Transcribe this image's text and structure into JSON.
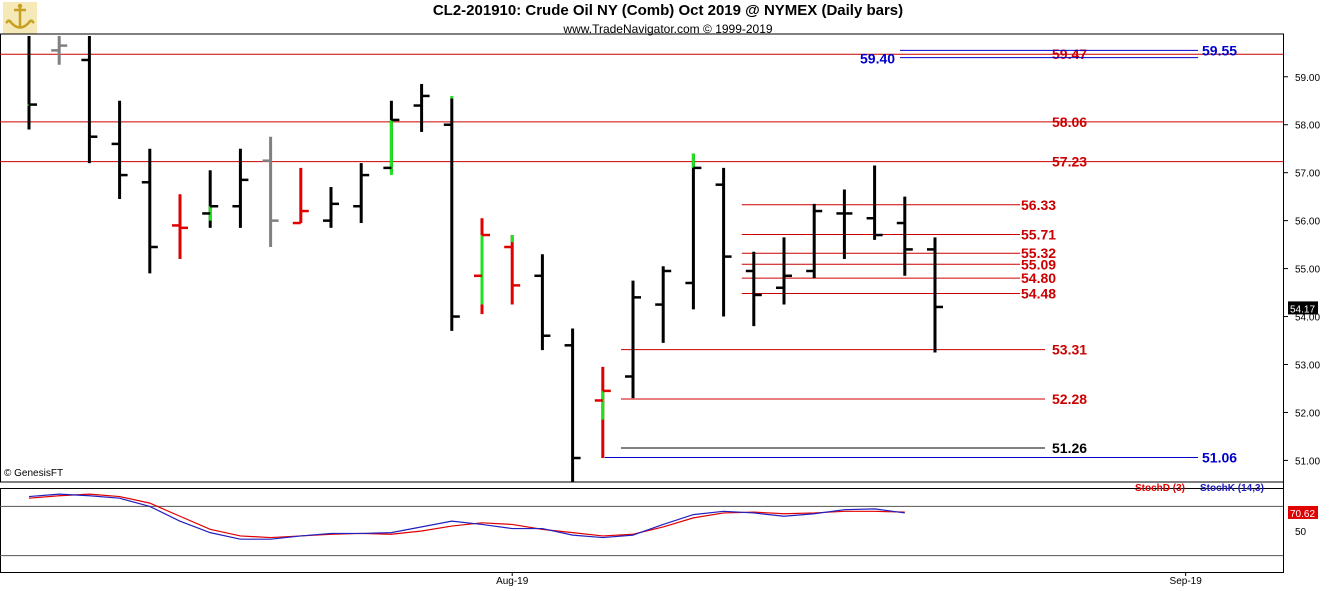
{
  "header": {
    "title": "CL2-201910:  Crude Oil NY (Comb) Oct 2019 @ NYMEX  (Daily bars)",
    "subtitle": "www.TradeNavigator.com © 1999-2019"
  },
  "watermark": "© GenesisFT",
  "colors": {
    "bar_black": "#000000",
    "bar_red": "#e00000",
    "bar_green": "#20e020",
    "bar_gray": "#808080",
    "level_red": "#cc0000",
    "level_blue": "#0000cc",
    "stoch_d": "#e00000",
    "stoch_k": "#2020c0"
  },
  "chart_data": {
    "type": "ohlc",
    "price_axis": {
      "ylim": [
        50.55,
        59.85
      ],
      "ticks": [
        "59.00",
        "58.00",
        "57.00",
        "56.00",
        "55.00",
        "54.00",
        "53.00",
        "52.00",
        "51.00"
      ],
      "last_price_label": "54.17"
    },
    "time_axis": {
      "labels": [
        "Aug-19",
        "Sep-19"
      ]
    },
    "bars": [
      {
        "o": null,
        "h": 59.85,
        "l": 57.9,
        "c": 58.42,
        "color": "black",
        "tail": "green",
        "tail_to": 58.4
      },
      {
        "o": 59.55,
        "h": 59.85,
        "l": 59.25,
        "c": 59.65,
        "color": "gray",
        "tail": null
      },
      {
        "o": 59.35,
        "h": 59.85,
        "l": 57.2,
        "c": 57.75,
        "color": "black",
        "tail": null
      },
      {
        "o": 57.6,
        "h": 58.5,
        "l": 56.45,
        "c": 56.95,
        "color": "black",
        "tail": null
      },
      {
        "o": 56.8,
        "h": 57.5,
        "l": 54.9,
        "c": 55.45,
        "color": "black",
        "tail": null
      },
      {
        "o": 55.9,
        "h": 56.55,
        "l": 55.2,
        "c": 55.85,
        "color": "red",
        "tail": null
      },
      {
        "o": 56.15,
        "h": 57.05,
        "l": 55.85,
        "c": 56.3,
        "color": "black",
        "tail": "green",
        "tail_to": 56.0
      },
      {
        "o": 56.3,
        "h": 57.5,
        "l": 55.85,
        "c": 56.85,
        "color": "black",
        "tail": null
      },
      {
        "o": 57.25,
        "h": 57.75,
        "l": 55.45,
        "c": 56.0,
        "color": "gray",
        "tail": null
      },
      {
        "o": 55.95,
        "h": 57.1,
        "l": 55.95,
        "c": 56.2,
        "color": "red",
        "tail": null
      },
      {
        "o": 56.0,
        "h": 56.7,
        "l": 55.85,
        "c": 56.35,
        "color": "black",
        "tail": null
      },
      {
        "o": 56.3,
        "h": 57.2,
        "l": 55.95,
        "c": 56.95,
        "color": "black",
        "tail": null
      },
      {
        "o": 57.1,
        "h": 58.5,
        "l": 57.0,
        "c": 58.1,
        "color": "black",
        "tail": "green",
        "tail_to": 56.95
      },
      {
        "o": 58.4,
        "h": 58.85,
        "l": 57.85,
        "c": 58.6,
        "color": "black",
        "tail": null
      },
      {
        "o": 58.0,
        "h": 58.55,
        "l": 53.7,
        "c": 54.0,
        "color": "black",
        "tail": "green",
        "tail_to": 58.6
      },
      {
        "o": 54.85,
        "h": 56.05,
        "l": 54.05,
        "c": 55.7,
        "color": "red",
        "tail": "green",
        "tail_to": 54.25
      },
      {
        "o": 55.45,
        "h": 55.7,
        "l": 54.25,
        "c": 54.65,
        "color": "red",
        "tail": "green",
        "tail_to": 55.55
      },
      {
        "o": 54.85,
        "h": 55.3,
        "l": 53.3,
        "c": 53.6,
        "color": "black",
        "tail": null
      },
      {
        "o": 53.4,
        "h": 53.75,
        "l": 50.55,
        "c": 51.05,
        "color": "black",
        "tail": null
      },
      {
        "o": 52.25,
        "h": 52.95,
        "l": 51.05,
        "c": 52.45,
        "color": "red",
        "tail": "green",
        "tail_to": 51.85
      },
      {
        "o": 52.75,
        "h": 54.75,
        "l": 52.3,
        "c": 54.4,
        "color": "black",
        "tail": null
      },
      {
        "o": 54.25,
        "h": 55.05,
        "l": 53.45,
        "c": 54.95,
        "color": "black",
        "tail": null
      },
      {
        "o": 54.7,
        "h": 57.4,
        "l": 54.15,
        "c": 57.1,
        "color": "black",
        "tail": "green",
        "tail_to": 57.1
      },
      {
        "o": 56.75,
        "h": 57.1,
        "l": 54.0,
        "c": 55.25,
        "color": "black",
        "tail": null
      },
      {
        "o": 54.95,
        "h": 55.35,
        "l": 53.8,
        "c": 54.45,
        "color": "black",
        "tail": null
      },
      {
        "o": 54.6,
        "h": 55.65,
        "l": 54.25,
        "c": 54.85,
        "color": "black",
        "tail": null
      },
      {
        "o": 54.95,
        "h": 56.35,
        "l": 54.8,
        "c": 56.2,
        "color": "black",
        "tail": null
      },
      {
        "o": 56.15,
        "h": 56.65,
        "l": 55.2,
        "c": 56.15,
        "color": "black",
        "tail": null
      },
      {
        "o": 56.05,
        "h": 57.15,
        "l": 55.6,
        "c": 55.7,
        "color": "black",
        "tail": null
      },
      {
        "o": 55.95,
        "h": 56.5,
        "l": 54.85,
        "c": 55.4,
        "color": "black",
        "tail": null
      },
      {
        "o": 55.4,
        "h": 55.65,
        "l": 53.25,
        "c": 54.2,
        "color": "black",
        "tail": null
      }
    ],
    "levels": [
      {
        "value": 59.47,
        "label": "59.47",
        "color": "red",
        "scope": "full"
      },
      {
        "value": 59.55,
        "label": "59.55",
        "color": "blue",
        "scope": "right"
      },
      {
        "value": 59.4,
        "label": "59.40",
        "color": "blue",
        "scope": "right"
      },
      {
        "value": 58.06,
        "label": "58.06",
        "color": "red",
        "scope": "full"
      },
      {
        "value": 57.23,
        "label": "57.23",
        "color": "red",
        "scope": "full"
      },
      {
        "value": 56.33,
        "label": "56.33",
        "color": "red",
        "scope": "recent"
      },
      {
        "value": 55.71,
        "label": "55.71",
        "color": "red",
        "scope": "recent"
      },
      {
        "value": 55.32,
        "label": "55.32",
        "color": "red",
        "scope": "recent"
      },
      {
        "value": 55.09,
        "label": "55.09",
        "color": "red",
        "scope": "recent"
      },
      {
        "value": 54.8,
        "label": "54.80",
        "color": "red",
        "scope": "recent"
      },
      {
        "value": 54.48,
        "label": "54.48",
        "color": "red",
        "scope": "recent"
      },
      {
        "value": 53.31,
        "label": "53.31",
        "color": "red",
        "scope": "low"
      },
      {
        "value": 52.28,
        "label": "52.28",
        "color": "red",
        "scope": "low"
      },
      {
        "value": 51.26,
        "label": "51.26",
        "color": "black",
        "scope": "low"
      },
      {
        "value": 51.06,
        "label": "51.06",
        "color": "blue",
        "scope": "lowwide"
      }
    ],
    "stochastic": {
      "legend_d": "StochD (3)",
      "legend_k": "StochK (14,3)",
      "value_label": "70.62",
      "tick": "50",
      "ylim": [
        0,
        100
      ],
      "k": [
        92,
        95,
        93,
        90,
        80,
        62,
        48,
        40,
        40,
        44,
        47,
        47,
        48,
        55,
        62,
        58,
        53,
        53,
        45,
        42,
        45,
        58,
        70,
        74,
        72,
        68,
        71,
        76,
        77,
        72
      ],
      "d": [
        90,
        93,
        95,
        92,
        84,
        68,
        52,
        44,
        42,
        44,
        46,
        47,
        46,
        50,
        56,
        60,
        58,
        52,
        48,
        44,
        46,
        55,
        66,
        72,
        73,
        71,
        72,
        74,
        74,
        73
      ]
    }
  }
}
